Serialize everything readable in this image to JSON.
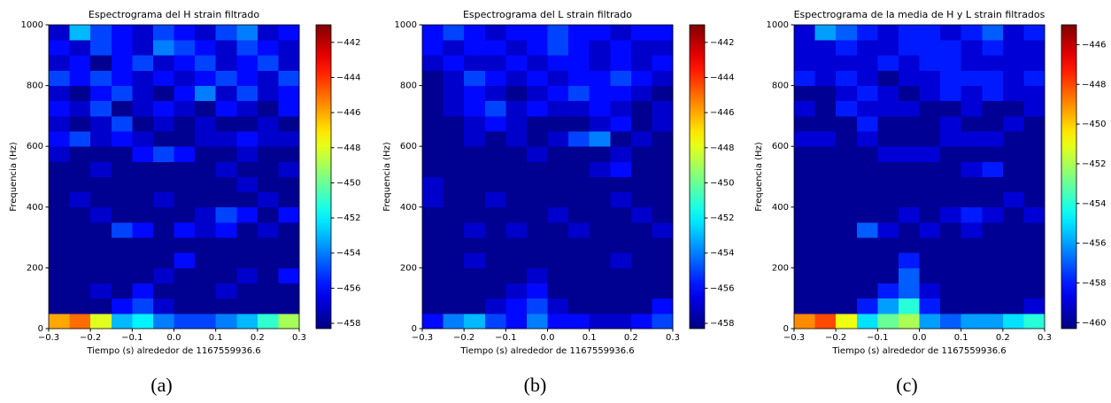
{
  "chart_data": [
    {
      "type": "heatmap",
      "title": "Espectrograma del H strain filtrado",
      "xlabel": "Tiempo (s) alrededor de 1167559936.6",
      "ylabel": "Frequencia (Hz)",
      "caption": "(a)",
      "xlim": [
        -0.3,
        0.3
      ],
      "ylim": [
        0,
        1000
      ],
      "zlim": [
        -458.3,
        -441
      ],
      "xticks": [
        {
          "value": -0.3,
          "label": "−0.3"
        },
        {
          "value": -0.2,
          "label": "−0.2"
        },
        {
          "value": -0.1,
          "label": "−0.1"
        },
        {
          "value": 0,
          "label": "0.0"
        },
        0.1,
        0.2,
        0.3
      ],
      "yticks": [
        0,
        200,
        400,
        600,
        800,
        1000
      ],
      "zticks": [
        {
          "value": -442,
          "label": "−442"
        },
        {
          "value": -444,
          "label": "−444"
        },
        {
          "value": -446,
          "label": "−446"
        },
        {
          "value": -448,
          "label": "−448"
        },
        {
          "value": -450,
          "label": "−450"
        },
        {
          "value": -452,
          "label": "−452"
        },
        {
          "value": -454,
          "label": "−454"
        },
        {
          "value": -456,
          "label": "−456"
        },
        {
          "value": -458,
          "label": "−458"
        }
      ],
      "xbins": [
        -0.3,
        -0.25,
        -0.2,
        -0.15,
        -0.1,
        -0.05,
        0,
        0.05,
        0.1,
        0.15,
        0.2,
        0.25,
        0.3
      ],
      "ybins": [
        0,
        50,
        100,
        150,
        200,
        250,
        300,
        350,
        400,
        450,
        500,
        550,
        600,
        650,
        700,
        750,
        800,
        850,
        900,
        950,
        1000
      ],
      "z": [
        [
          -446,
          -445,
          -448,
          -453,
          -452,
          -454,
          -455,
          -455,
          -454,
          -453,
          -451,
          -449
        ],
        [
          -458,
          -458,
          -458,
          -456,
          -455,
          -457,
          -458,
          -458,
          -458,
          -458,
          -458,
          -458
        ],
        [
          -458,
          -458,
          -457,
          -458,
          -456,
          -458,
          -458,
          -458,
          -457,
          -458,
          -458,
          -458
        ],
        [
          -458,
          -458,
          -458,
          -458,
          -458,
          -457,
          -458,
          -458,
          -458,
          -457,
          -458,
          -456
        ],
        [
          -458,
          -458,
          -458,
          -458,
          -458,
          -458,
          -456,
          -458,
          -458,
          -458,
          -458,
          -458
        ],
        [
          -458,
          -458,
          -458,
          -458,
          -458,
          -458,
          -458,
          -458,
          -458,
          -458,
          -458,
          -458
        ],
        [
          -458,
          -458,
          -458,
          -455,
          -456,
          -458,
          -456,
          -457,
          -456,
          -458,
          -457,
          -458
        ],
        [
          -458,
          -458,
          -457,
          -458,
          -458,
          -458,
          -458,
          -457,
          -455,
          -456,
          -458,
          -456
        ],
        [
          -458,
          -457,
          -458,
          -458,
          -458,
          -457,
          -458,
          -458,
          -458,
          -458,
          -457,
          -458
        ],
        [
          -458,
          -458,
          -458,
          -458,
          -458,
          -458,
          -458,
          -458,
          -458,
          -457,
          -458,
          -458
        ],
        [
          -458,
          -458,
          -457,
          -458,
          -458,
          -458,
          -458,
          -458,
          -457,
          -458,
          -458,
          -457
        ],
        [
          -457,
          -458,
          -458,
          -458,
          -456,
          -455,
          -456,
          -458,
          -458,
          -457,
          -458,
          -458
        ],
        [
          -456,
          -455,
          -457,
          -456,
          -457,
          -458,
          -458,
          -457,
          -457,
          -456,
          -457,
          -457
        ],
        [
          -457,
          -458,
          -457,
          -455,
          -458,
          -457,
          -458,
          -457,
          -458,
          -458,
          -457,
          -458
        ],
        [
          -456,
          -457,
          -455,
          -458,
          -457,
          -456,
          -457,
          -458,
          -456,
          -457,
          -458,
          -456
        ],
        [
          -457,
          -458,
          -456,
          -455,
          -457,
          -458,
          -456,
          -454,
          -457,
          -455,
          -457,
          -456
        ],
        [
          -455,
          -456,
          -455,
          -456,
          -457,
          -456,
          -457,
          -456,
          -455,
          -456,
          -457,
          -455
        ],
        [
          -457,
          -456,
          -458,
          -456,
          -455,
          -457,
          -456,
          -455,
          -457,
          -456,
          -455,
          -457
        ],
        [
          -456,
          -457,
          -455,
          -456,
          -457,
          -454,
          -455,
          -456,
          -457,
          -455,
          -456,
          -457
        ],
        [
          -457,
          -453,
          -455,
          -456,
          -457,
          -455,
          -456,
          -457,
          -455,
          -454,
          -457,
          -456
        ]
      ]
    },
    {
      "type": "heatmap",
      "title": "Espectrograma del L strain filtrado",
      "xlabel": "Tiempo (s) alrededor de 1167559936.6",
      "ylabel": "Frequencia (Hz)",
      "caption": "(b)",
      "xlim": [
        -0.3,
        0.3
      ],
      "ylim": [
        0,
        1000
      ],
      "zlim": [
        -458.3,
        -441
      ],
      "xticks": [
        {
          "value": -0.3,
          "label": "−0.3"
        },
        {
          "value": -0.2,
          "label": "−0.2"
        },
        {
          "value": -0.1,
          "label": "−0.1"
        },
        {
          "value": 0,
          "label": "0.0"
        },
        0.1,
        0.2,
        0.3
      ],
      "yticks": [
        0,
        200,
        400,
        600,
        800,
        1000
      ],
      "zticks": [
        {
          "value": -442,
          "label": "−442"
        },
        {
          "value": -444,
          "label": "−444"
        },
        {
          "value": -446,
          "label": "−446"
        },
        {
          "value": -448,
          "label": "−448"
        },
        {
          "value": -450,
          "label": "−450"
        },
        {
          "value": -452,
          "label": "−452"
        },
        {
          "value": -454,
          "label": "−454"
        },
        {
          "value": -456,
          "label": "−456"
        },
        {
          "value": -458,
          "label": "−458"
        }
      ],
      "xbins": [
        -0.3,
        -0.25,
        -0.2,
        -0.15,
        -0.1,
        -0.05,
        0,
        0.05,
        0.1,
        0.15,
        0.2,
        0.25,
        0.3
      ],
      "ybins": [
        0,
        50,
        100,
        150,
        200,
        250,
        300,
        350,
        400,
        450,
        500,
        550,
        600,
        650,
        700,
        750,
        800,
        850,
        900,
        950,
        1000
      ],
      "z": [
        [
          -456,
          -454,
          -453,
          -455,
          -456,
          -454,
          -456,
          -456,
          -457,
          -457,
          -456,
          -455
        ],
        [
          -458,
          -458,
          -458,
          -457,
          -456,
          -455,
          -457,
          -458,
          -458,
          -458,
          -458,
          -456
        ],
        [
          -458,
          -458,
          -458,
          -458,
          -457,
          -456,
          -458,
          -458,
          -458,
          -458,
          -458,
          -458
        ],
        [
          -458,
          -458,
          -458,
          -458,
          -458,
          -457,
          -458,
          -458,
          -458,
          -458,
          -458,
          -458
        ],
        [
          -458,
          -458,
          -457,
          -458,
          -458,
          -458,
          -458,
          -458,
          -458,
          -457,
          -458,
          -458
        ],
        [
          -458,
          -458,
          -458,
          -458,
          -458,
          -458,
          -458,
          -458,
          -458,
          -458,
          -458,
          -458
        ],
        [
          -458,
          -458,
          -457,
          -458,
          -457,
          -458,
          -458,
          -457,
          -458,
          -458,
          -458,
          -457
        ],
        [
          -458,
          -458,
          -458,
          -458,
          -458,
          -458,
          -457,
          -458,
          -458,
          -458,
          -457,
          -458
        ],
        [
          -457,
          -458,
          -458,
          -457,
          -458,
          -458,
          -458,
          -458,
          -458,
          -457,
          -458,
          -458
        ],
        [
          -457,
          -458,
          -458,
          -458,
          -458,
          -458,
          -458,
          -458,
          -458,
          -458,
          -458,
          -458
        ],
        [
          -458,
          -458,
          -458,
          -458,
          -458,
          -458,
          -458,
          -458,
          -457,
          -456,
          -458,
          -458
        ],
        [
          -458,
          -458,
          -458,
          -458,
          -458,
          -457,
          -458,
          -458,
          -458,
          -457,
          -458,
          -458
        ],
        [
          -458,
          -458,
          -457,
          -458,
          -457,
          -458,
          -457,
          -455,
          -454,
          -458,
          -457,
          -458
        ],
        [
          -458,
          -458,
          -457,
          -456,
          -457,
          -458,
          -458,
          -458,
          -457,
          -456,
          -458,
          -457
        ],
        [
          -458,
          -457,
          -456,
          -455,
          -457,
          -456,
          -457,
          -457,
          -456,
          -457,
          -458,
          -457
        ],
        [
          -458,
          -457,
          -456,
          -457,
          -458,
          -457,
          -456,
          -455,
          -456,
          -456,
          -457,
          -458
        ],
        [
          -458,
          -457,
          -455,
          -456,
          -457,
          -456,
          -457,
          -456,
          -456,
          -455,
          -456,
          -457
        ],
        [
          -457,
          -456,
          -457,
          -457,
          -456,
          -457,
          -456,
          -456,
          -457,
          -456,
          -457,
          -456
        ],
        [
          -456,
          -457,
          -456,
          -456,
          -457,
          -456,
          -455,
          -456,
          -457,
          -456,
          -457,
          -457
        ],
        [
          -456,
          -455,
          -456,
          -457,
          -456,
          -456,
          -455,
          -456,
          -456,
          -457,
          -456,
          -456
        ]
      ]
    },
    {
      "type": "heatmap",
      "title": "Espectrograma de la media de H y L strain filtrados",
      "xlabel": "Tiempo (s) alrededor de 1167559936.6",
      "ylabel": "Frequencia (Hz)",
      "caption": "(c)",
      "xlim": [
        -0.3,
        0.3
      ],
      "ylim": [
        0,
        1000
      ],
      "zlim": [
        -460.3,
        -445
      ],
      "xticks": [
        {
          "value": -0.3,
          "label": "−0.3"
        },
        {
          "value": -0.2,
          "label": "−0.2"
        },
        {
          "value": -0.1,
          "label": "−0.1"
        },
        {
          "value": 0,
          "label": "0.0"
        },
        0.1,
        0.2,
        0.3
      ],
      "yticks": [
        0,
        200,
        400,
        600,
        800,
        1000
      ],
      "zticks": [
        {
          "value": -446,
          "label": "−446"
        },
        {
          "value": -448,
          "label": "−448"
        },
        {
          "value": -450,
          "label": "−450"
        },
        {
          "value": -452,
          "label": "−452"
        },
        {
          "value": -454,
          "label": "−454"
        },
        {
          "value": -456,
          "label": "−456"
        },
        {
          "value": -458,
          "label": "−458"
        },
        {
          "value": -460,
          "label": "−460"
        }
      ],
      "xbins": [
        -0.3,
        -0.25,
        -0.2,
        -0.15,
        -0.1,
        -0.05,
        0,
        0.05,
        0.1,
        0.15,
        0.2,
        0.25,
        0.3
      ],
      "ybins": [
        0,
        50,
        100,
        150,
        200,
        250,
        300,
        350,
        400,
        450,
        500,
        550,
        600,
        650,
        700,
        750,
        800,
        850,
        900,
        950,
        1000
      ],
      "z": [
        [
          -449,
          -448,
          -451,
          -455,
          -453,
          -452,
          -456,
          -457,
          -456,
          -456,
          -455,
          -454
        ],
        [
          -460,
          -460,
          -460,
          -458,
          -456,
          -454,
          -458,
          -460,
          -460,
          -460,
          -460,
          -459
        ],
        [
          -460,
          -460,
          -460,
          -460,
          -458,
          -457,
          -459,
          -460,
          -460,
          -460,
          -460,
          -460
        ],
        [
          -460,
          -460,
          -460,
          -460,
          -460,
          -457,
          -460,
          -460,
          -460,
          -460,
          -460,
          -460
        ],
        [
          -460,
          -460,
          -460,
          -460,
          -460,
          -458,
          -460,
          -460,
          -460,
          -460,
          -460,
          -460
        ],
        [
          -460,
          -460,
          -460,
          -460,
          -460,
          -460,
          -460,
          -460,
          -460,
          -460,
          -460,
          -460
        ],
        [
          -460,
          -460,
          -460,
          -457,
          -459,
          -460,
          -459,
          -460,
          -459,
          -460,
          -460,
          -460
        ],
        [
          -460,
          -460,
          -460,
          -460,
          -460,
          -459,
          -460,
          -459,
          -458,
          -459,
          -460,
          -459
        ],
        [
          -460,
          -460,
          -460,
          -460,
          -460,
          -460,
          -460,
          -460,
          -460,
          -460,
          -459,
          -460
        ],
        [
          -460,
          -460,
          -460,
          -460,
          -460,
          -460,
          -460,
          -460,
          -460,
          -460,
          -460,
          -460
        ],
        [
          -460,
          -460,
          -460,
          -460,
          -460,
          -460,
          -460,
          -460,
          -459,
          -458,
          -460,
          -460
        ],
        [
          -460,
          -460,
          -460,
          -460,
          -459,
          -459,
          -459,
          -460,
          -460,
          -460,
          -460,
          -460
        ],
        [
          -459,
          -459,
          -460,
          -459,
          -460,
          -460,
          -460,
          -459,
          -459,
          -459,
          -460,
          -460
        ],
        [
          -460,
          -460,
          -460,
          -458,
          -460,
          -460,
          -460,
          -459,
          -460,
          -460,
          -459,
          -460
        ],
        [
          -459,
          -460,
          -458,
          -459,
          -459,
          -459,
          -460,
          -460,
          -459,
          -460,
          -460,
          -459
        ],
        [
          -460,
          -460,
          -459,
          -458,
          -459,
          -460,
          -459,
          -458,
          -459,
          -458,
          -459,
          -459
        ],
        [
          -458,
          -459,
          -458,
          -459,
          -460,
          -459,
          -459,
          -458,
          -458,
          -458,
          -459,
          -458
        ],
        [
          -459,
          -459,
          -459,
          -459,
          -458,
          -459,
          -458,
          -458,
          -459,
          -459,
          -459,
          -459
        ],
        [
          -459,
          -459,
          -458,
          -459,
          -459,
          -458,
          -458,
          -458,
          -459,
          -458,
          -459,
          -459
        ],
        [
          -459,
          -456,
          -457,
          -458,
          -459,
          -458,
          -458,
          -459,
          -458,
          -457,
          -459,
          -458
        ]
      ]
    }
  ]
}
